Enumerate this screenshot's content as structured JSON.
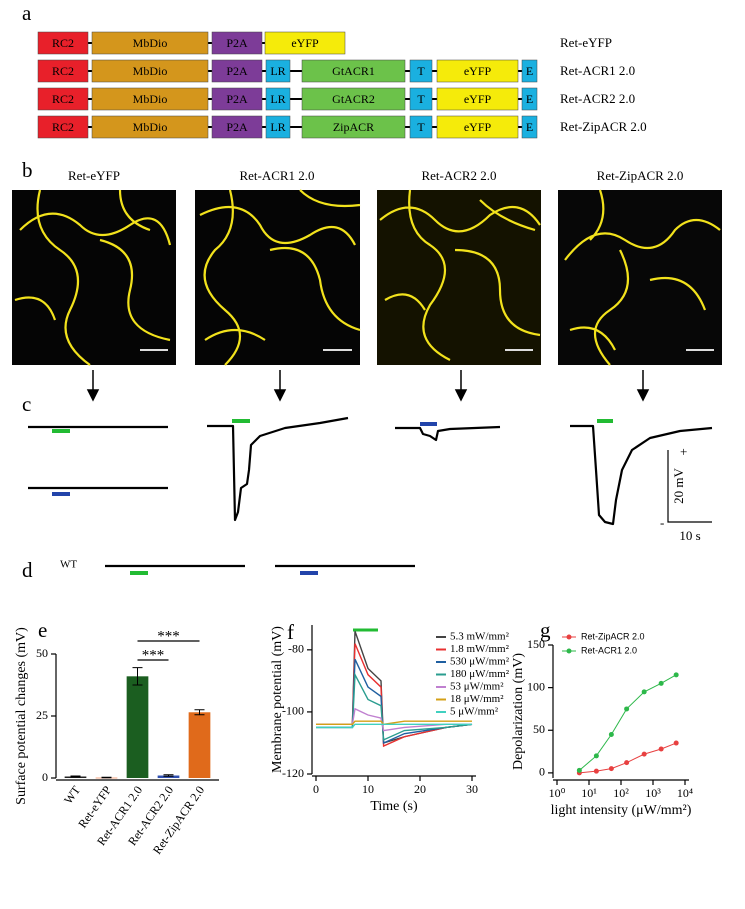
{
  "panel_labels": [
    "a",
    "b",
    "c",
    "d",
    "e",
    "f",
    "g"
  ],
  "constructs": [
    {
      "name": "Ret-eYFP",
      "parts": [
        "RC2",
        "MbDio",
        "P2A",
        "eYFP"
      ]
    },
    {
      "name": "Ret-ACR1 2.0",
      "parts": [
        "RC2",
        "MbDio",
        "P2A",
        "LR",
        "GtACR1",
        "T",
        "eYFP",
        "E"
      ]
    },
    {
      "name": "Ret-ACR2 2.0",
      "parts": [
        "RC2",
        "MbDio",
        "P2A",
        "LR",
        "GtACR2",
        "T",
        "eYFP",
        "E"
      ]
    },
    {
      "name": "Ret-ZipACR 2.0",
      "parts": [
        "RC2",
        "MbDio",
        "P2A",
        "LR",
        "ZipACR",
        "T",
        "eYFP",
        "E"
      ]
    }
  ],
  "micrographs": [
    "Ret-eYFP",
    "Ret-ACR1 2.0",
    "Ret-ACR2 2.0",
    "Ret-ZipACR 2.0"
  ],
  "scale_bar": {
    "voltage": "20 mV",
    "time": "10 s",
    "plus": "+",
    "minus": "-"
  },
  "wt_label": "WT",
  "chart_data": [
    {
      "type": "bar",
      "y_label": "Surface potential changes (mV)",
      "categories": [
        "WT",
        "Ret-eYFP",
        "Ret-ACR1 2.0",
        "Ret-ACR2 2.0",
        "Ret-ZipACR 2.0"
      ],
      "values": [
        0.6,
        0.2,
        41,
        1,
        26.5
      ],
      "errors": [
        0.2,
        0.1,
        3.5,
        0.3,
        1
      ],
      "colors": [
        "#222222",
        "#f4a582",
        "#1b5e20",
        "#3050b0",
        "#e06a1b"
      ],
      "ylim": [
        0,
        50
      ],
      "yticks": [
        0,
        25,
        50
      ],
      "annotations": [
        "***",
        "***"
      ]
    },
    {
      "type": "line",
      "x_label": "Time (s)",
      "y_label": "Membrane potential (mV)",
      "x": [
        0,
        7,
        7.5,
        10,
        12.5,
        13,
        17,
        25,
        30
      ],
      "series": [
        {
          "name": "5.3 mW/mm²",
          "color": "#444444",
          "values": [
            -104,
            -104,
            -74,
            -86,
            -90,
            -110,
            -108,
            -105,
            -104
          ]
        },
        {
          "name": "1.8 mW/mm²",
          "color": "#e83030",
          "values": [
            -104,
            -104,
            -78,
            -88,
            -92,
            -111,
            -108,
            -105,
            -104
          ]
        },
        {
          "name": "530 μW/mm²",
          "color": "#1f5fa0",
          "values": [
            -105,
            -105,
            -83,
            -92,
            -95,
            -110,
            -107,
            -105,
            -104
          ]
        },
        {
          "name": "180 μW/mm²",
          "color": "#2a9d8f",
          "values": [
            -105,
            -105,
            -88,
            -96,
            -98,
            -109,
            -106,
            -105,
            -104
          ]
        },
        {
          "name": "53 μW/mm²",
          "color": "#c080d0",
          "values": [
            -104,
            -104,
            -99,
            -101,
            -102,
            -106,
            -105,
            -104,
            -104
          ]
        },
        {
          "name": "18 μW/mm²",
          "color": "#d4a017",
          "values": [
            -104,
            -104,
            -103,
            -103,
            -103,
            -104,
            -103,
            -103,
            -103
          ]
        },
        {
          "name": "5 μW/mm²",
          "color": "#40d0c0",
          "values": [
            -105,
            -105,
            -104,
            -104,
            -104,
            -104,
            -104,
            -104,
            -104
          ]
        }
      ],
      "xlim": [
        0,
        30
      ],
      "xticks": [
        0,
        10,
        20,
        30
      ],
      "ylim": [
        -120,
        -72
      ],
      "yticks": [
        -120,
        -100,
        -80
      ]
    },
    {
      "type": "scatter",
      "x_label": "light intensity (μW/mm²)",
      "y_label": "Depolarization (mV)",
      "x": [
        5,
        17,
        50,
        150,
        530,
        1800,
        5300
      ],
      "series": [
        {
          "name": "Ret-ZipACR 2.0",
          "color": "#e84040",
          "values": [
            0,
            2,
            5,
            12,
            22,
            28,
            35
          ]
        },
        {
          "name": "Ret-ACR1 2.0",
          "color": "#2db84a",
          "values": [
            3,
            20,
            45,
            75,
            95,
            105,
            115
          ]
        }
      ],
      "xscale": "log",
      "xlim": [
        1,
        10000
      ],
      "xticks": [
        {
          "value": 1,
          "label": "10⁰"
        },
        {
          "value": 10,
          "label": "10¹"
        },
        {
          "value": 100,
          "label": "10²"
        },
        {
          "value": 1000,
          "label": "10³"
        },
        {
          "value": 10000,
          "label": "10⁴"
        }
      ],
      "ylim": [
        -6,
        150
      ],
      "yticks": [
        0,
        50,
        100,
        150
      ],
      "legend": "upper-left"
    }
  ]
}
